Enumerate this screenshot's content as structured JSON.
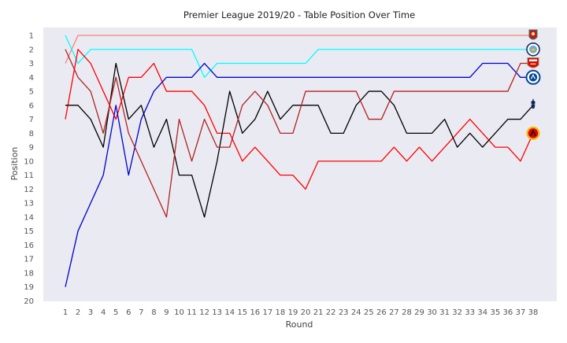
{
  "chart_data": {
    "type": "line",
    "title": "Premier League 2019/20 - Table Position Over Time",
    "xlabel": "Round",
    "ylabel": "Position",
    "x": [
      1,
      2,
      3,
      4,
      5,
      6,
      7,
      8,
      9,
      10,
      11,
      12,
      13,
      14,
      15,
      16,
      17,
      18,
      19,
      20,
      21,
      22,
      23,
      24,
      25,
      26,
      27,
      28,
      29,
      30,
      31,
      32,
      33,
      34,
      35,
      36,
      37,
      38
    ],
    "xlim": [
      1,
      38
    ],
    "ylim": [
      20,
      1
    ],
    "y_ticks": [
      1,
      2,
      3,
      4,
      5,
      6,
      7,
      8,
      9,
      10,
      11,
      12,
      13,
      14,
      15,
      16,
      17,
      18,
      19,
      20
    ],
    "y_inverted": true,
    "grid": false,
    "background": "#eaeaf2",
    "series": [
      {
        "team_icon": "liverpool-crest-icon",
        "color": "#fa8072",
        "values": [
          3,
          1,
          1,
          1,
          1,
          1,
          1,
          1,
          1,
          1,
          1,
          1,
          1,
          1,
          1,
          1,
          1,
          1,
          1,
          1,
          1,
          1,
          1,
          1,
          1,
          1,
          1,
          1,
          1,
          1,
          1,
          1,
          1,
          1,
          1,
          1,
          1,
          1
        ]
      },
      {
        "team_icon": "manchester-city-crest-icon",
        "color": "#00ffff",
        "values": [
          1,
          3,
          2,
          2,
          2,
          2,
          2,
          2,
          2,
          2,
          2,
          4,
          3,
          3,
          3,
          3,
          3,
          3,
          3,
          3,
          2,
          2,
          2,
          2,
          2,
          2,
          2,
          2,
          2,
          2,
          2,
          2,
          2,
          2,
          2,
          2,
          2,
          2
        ]
      },
      {
        "team_icon": "manchester-united-crest-icon",
        "color": "#ff0000",
        "values": [
          7,
          2,
          3,
          5,
          7,
          4,
          4,
          3,
          5,
          5,
          5,
          6,
          8,
          8,
          10,
          9,
          10,
          11,
          11,
          12,
          10,
          10,
          10,
          10,
          10,
          10,
          9,
          10,
          9,
          10,
          9,
          8,
          7,
          8,
          9,
          9,
          10,
          8
        ]
      },
      {
        "team_icon": "chelsea-crest-icon",
        "color": "#0000cd",
        "values": [
          19,
          15,
          13,
          11,
          6,
          11,
          7,
          5,
          4,
          4,
          4,
          3,
          4,
          4,
          4,
          4,
          4,
          4,
          4,
          4,
          4,
          4,
          4,
          4,
          4,
          4,
          4,
          4,
          4,
          4,
          4,
          4,
          4,
          3,
          3,
          3,
          4,
          4
        ]
      },
      {
        "team_icon": "tottenham-crest-icon",
        "color": "#000000",
        "values": [
          6,
          6,
          7,
          9,
          3,
          7,
          6,
          9,
          7,
          11,
          11,
          14,
          10,
          5,
          8,
          7,
          5,
          7,
          6,
          6,
          6,
          8,
          8,
          6,
          5,
          5,
          6,
          8,
          8,
          8,
          7,
          9,
          8,
          9,
          8,
          7,
          7,
          6
        ]
      },
      {
        "team_icon": "arsenal-crest-icon",
        "color": "#b22222",
        "values": [
          2,
          4,
          5,
          8,
          4,
          8,
          10,
          12,
          14,
          7,
          10,
          7,
          9,
          9,
          6,
          5,
          6,
          8,
          8,
          5,
          5,
          5,
          5,
          5,
          7,
          7,
          5,
          5,
          5,
          5,
          5,
          5,
          5,
          5,
          5,
          5,
          3,
          3
        ]
      }
    ]
  }
}
